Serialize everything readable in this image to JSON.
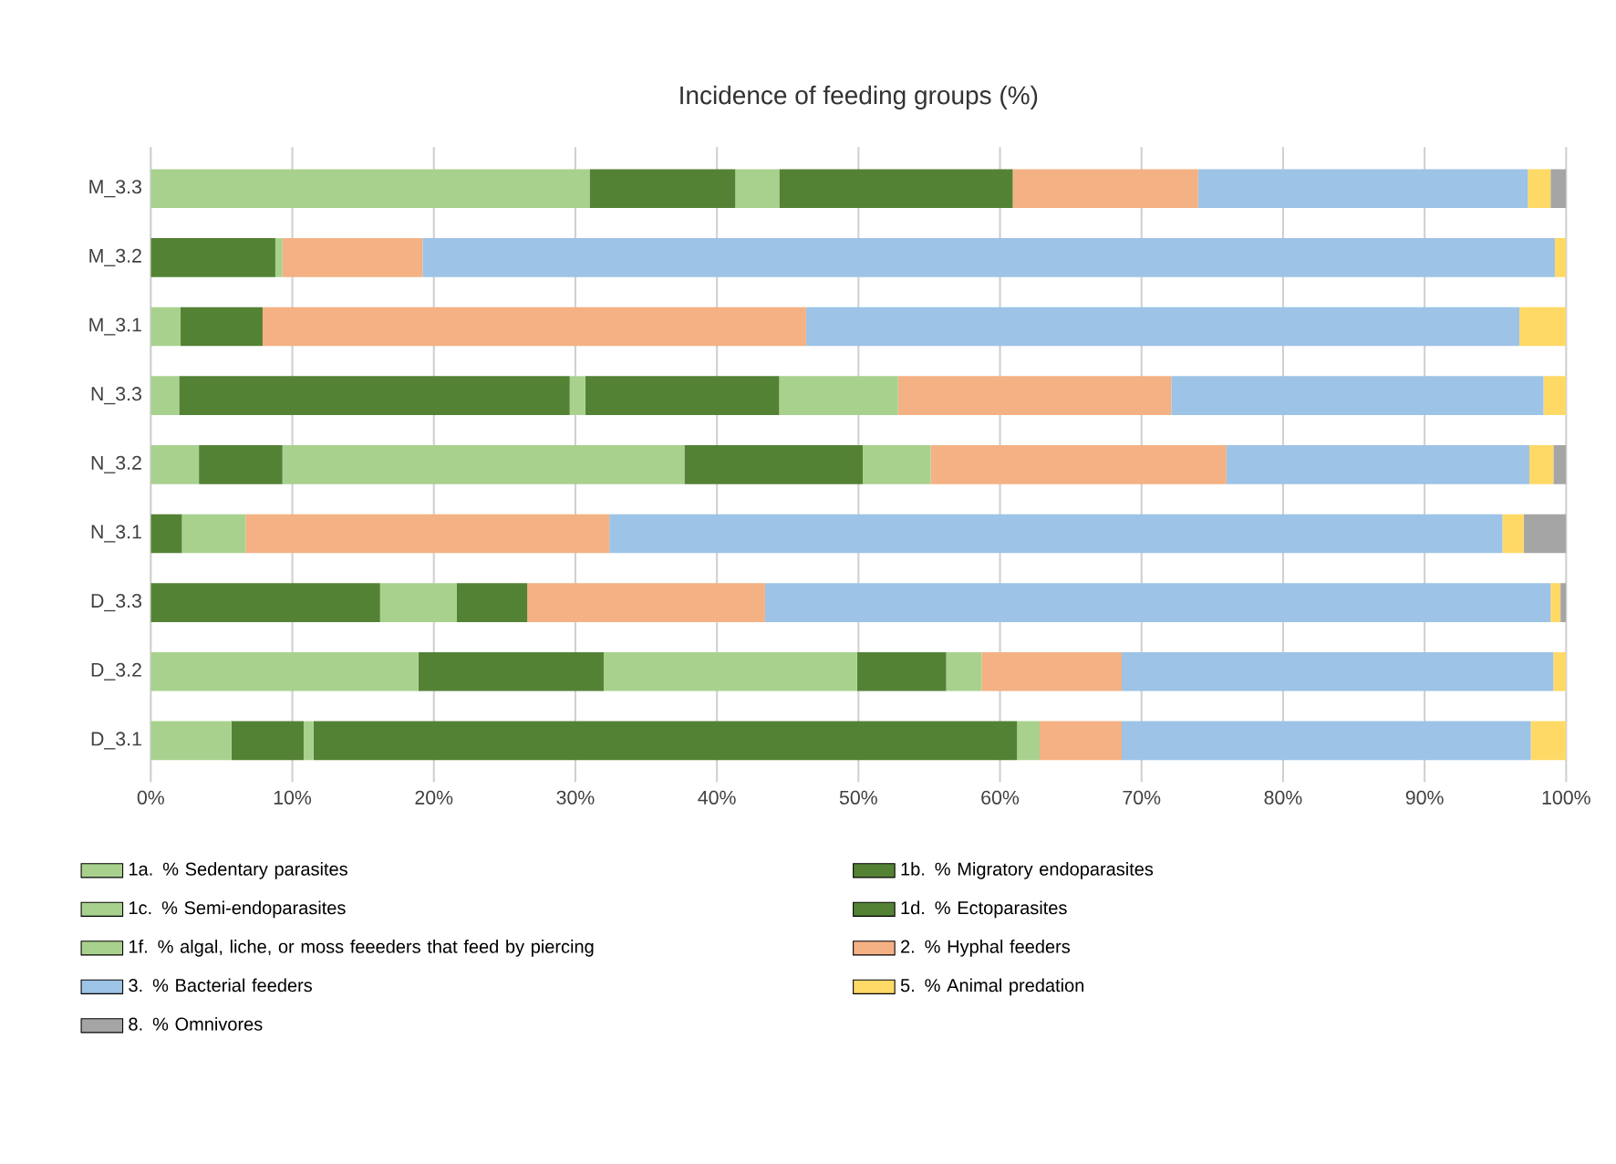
{
  "chart_data": {
    "type": "bar",
    "orientation": "horizontal",
    "stacked": true,
    "title": "Incidence of feeding groups (%)",
    "categories": [
      "M_3.3",
      "M_3.2",
      "M_3.1",
      "N_3.3",
      "N_3.2",
      "N_3.1",
      "D_3.3",
      "D_3.2",
      "D_3.1"
    ],
    "series": [
      {
        "name": "1a. % Sedentary parasites",
        "color": "#a9d18e",
        "values": [
          31.0,
          0,
          2.1,
          2.0,
          3.4,
          0,
          0,
          18.9,
          5.7
        ]
      },
      {
        "name": "1b. % Migratory endoparasites",
        "color": "#548235",
        "values": [
          10.3,
          8.8,
          5.8,
          27.6,
          5.9,
          2.2,
          16.2,
          13.1,
          5.1
        ]
      },
      {
        "name": "1c. % Semi-endoparasites",
        "color": "#a9d18e",
        "values": [
          3.1,
          0.5,
          0,
          1.1,
          28.4,
          4.5,
          5.4,
          17.9,
          0.7
        ]
      },
      {
        "name": "1d. % Ectoparasites",
        "color": "#548235",
        "values": [
          16.5,
          0,
          0,
          13.7,
          12.6,
          0,
          5.0,
          6.3,
          49.7
        ]
      },
      {
        "name": "1f. % algal, liche, or moss feeeders that feed by piercing",
        "color": "#a9d18e",
        "values": [
          0,
          0,
          0,
          8.4,
          4.8,
          0,
          0,
          2.5,
          1.6
        ]
      },
      {
        "name": "2. % Hyphal feeders",
        "color": "#f4b183",
        "values": [
          13.1,
          9.9,
          38.4,
          19.3,
          20.9,
          25.7,
          16.8,
          9.9,
          5.8
        ]
      },
      {
        "name": "3.  % Bacterial feeders",
        "color": "#9dc3e6",
        "values": [
          23.3,
          80.0,
          50.4,
          26.3,
          21.4,
          63.1,
          55.5,
          30.5,
          28.9
        ]
      },
      {
        "name": "5. % Animal predation",
        "color": "#ffd966",
        "values": [
          1.6,
          0.8,
          3.3,
          1.6,
          1.7,
          1.5,
          0.7,
          0.9,
          2.5
        ]
      },
      {
        "name": "8. % Omnivores",
        "color": "#a5a5a5",
        "values": [
          1.1,
          0,
          0,
          0,
          0.9,
          3.0,
          0.4,
          0,
          0
        ]
      }
    ],
    "xlim": [
      0,
      100
    ],
    "xticks": [
      {
        "value": 0,
        "label": "0%"
      },
      {
        "value": 10,
        "label": "10%"
      },
      {
        "value": 20,
        "label": "20%"
      },
      {
        "value": 30,
        "label": "30%"
      },
      {
        "value": 40,
        "label": "40%"
      },
      {
        "value": 50,
        "label": "50%"
      },
      {
        "value": 60,
        "label": "60%"
      },
      {
        "value": 70,
        "label": "70%"
      },
      {
        "value": 80,
        "label": "80%"
      },
      {
        "value": 90,
        "label": "90%"
      },
      {
        "value": 100,
        "label": "100%"
      }
    ],
    "grid": "x",
    "legend": "bottom"
  }
}
